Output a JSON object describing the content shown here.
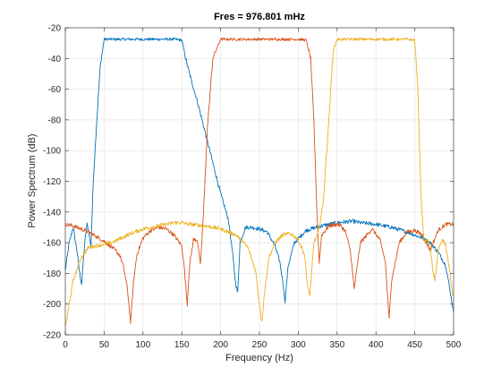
{
  "chart_data": {
    "type": "line",
    "title": "Fres = 976.801 mHz",
    "xlabel": "Frequency (Hz)",
    "ylabel": "Power Spectrum (dB)",
    "xlim": [
      0,
      500
    ],
    "ylim": [
      -220,
      -20
    ],
    "xticks": [
      0,
      50,
      100,
      150,
      200,
      250,
      300,
      350,
      400,
      450,
      500
    ],
    "yticks": [
      -220,
      -200,
      -180,
      -160,
      -140,
      -120,
      -100,
      -80,
      -60,
      -40,
      -20
    ],
    "grid": true,
    "legend": "none",
    "series": [
      {
        "color": "#0072BD",
        "x": [
          0,
          5,
          10,
          15,
          18,
          21,
          25,
          28,
          30,
          33,
          36,
          40,
          45,
          50,
          60,
          80,
          100,
          120,
          140,
          150,
          155,
          160,
          170,
          180,
          190,
          200,
          210,
          215,
          219,
          222,
          225,
          232,
          240,
          250,
          260,
          270,
          276,
          280,
          283,
          287,
          295,
          310,
          330,
          350,
          370,
          380,
          400,
          420,
          440,
          460,
          470,
          480,
          490,
          495,
          500
        ],
        "y": [
          -178,
          -160,
          -150,
          -165,
          -178,
          -187,
          -160,
          -148,
          -152,
          -163,
          -120,
          -85,
          -45,
          -27.5,
          -27.5,
          -27.5,
          -27.5,
          -27.5,
          -27.5,
          -28,
          -40,
          -50,
          -68,
          -88,
          -108,
          -128,
          -145,
          -165,
          -185,
          -193,
          -160,
          -150,
          -150,
          -151,
          -153,
          -162,
          -172,
          -185,
          -198,
          -175,
          -160,
          -152,
          -149,
          -147,
          -146,
          -147,
          -148,
          -150,
          -153,
          -157,
          -160,
          -166,
          -175,
          -190,
          -205
        ]
      },
      {
        "color": "#D95319",
        "x": [
          0,
          10,
          20,
          30,
          40,
          50,
          60,
          70,
          75,
          80,
          84,
          88,
          92,
          100,
          110,
          120,
          130,
          140,
          150,
          153,
          157,
          160,
          165,
          170,
          174,
          178,
          183,
          190,
          200,
          250,
          300,
          310,
          316,
          320,
          324,
          327,
          330,
          340,
          350,
          355,
          361,
          367,
          372,
          380,
          395,
          405,
          412,
          417,
          420,
          430,
          440,
          450,
          460,
          470,
          480,
          490,
          500
        ],
        "y": [
          -148,
          -149,
          -151,
          -153,
          -156,
          -159,
          -163,
          -168,
          -176,
          -190,
          -212,
          -185,
          -168,
          -157,
          -152,
          -150,
          -151,
          -155,
          -162,
          -175,
          -200,
          -175,
          -158,
          -158,
          -175,
          -140,
          -85,
          -40,
          -27.5,
          -27.5,
          -27.5,
          -28,
          -40,
          -80,
          -140,
          -173,
          -155,
          -149,
          -148,
          -149,
          -153,
          -165,
          -190,
          -160,
          -151,
          -158,
          -172,
          -210,
          -185,
          -160,
          -153,
          -152,
          -155,
          -165,
          -152,
          -148,
          -148
        ]
      },
      {
        "color": "#EDB120",
        "x": [
          0,
          2,
          5,
          10,
          20,
          30,
          40,
          60,
          80,
          100,
          120,
          140,
          150,
          160,
          180,
          200,
          220,
          235,
          245,
          250,
          253,
          256,
          262,
          270,
          280,
          290,
          300,
          308,
          312,
          315,
          320,
          325,
          332,
          340,
          345,
          350,
          400,
          440,
          450,
          454,
          458,
          462,
          466,
          470,
          473,
          476,
          480,
          486,
          490,
          495,
          498,
          500
        ],
        "y": [
          -215,
          -210,
          -200,
          -185,
          -170,
          -163,
          -162,
          -160,
          -155,
          -151,
          -149,
          -147,
          -147,
          -148,
          -149,
          -151,
          -155,
          -163,
          -178,
          -200,
          -212,
          -195,
          -170,
          -160,
          -155,
          -154,
          -158,
          -168,
          -188,
          -195,
          -160,
          -155,
          -135,
          -75,
          -35,
          -27.5,
          -27.5,
          -27.5,
          -28,
          -60,
          -130,
          -160,
          -158,
          -162,
          -178,
          -185,
          -165,
          -158,
          -162,
          -178,
          -192,
          -195
        ]
      }
    ]
  }
}
